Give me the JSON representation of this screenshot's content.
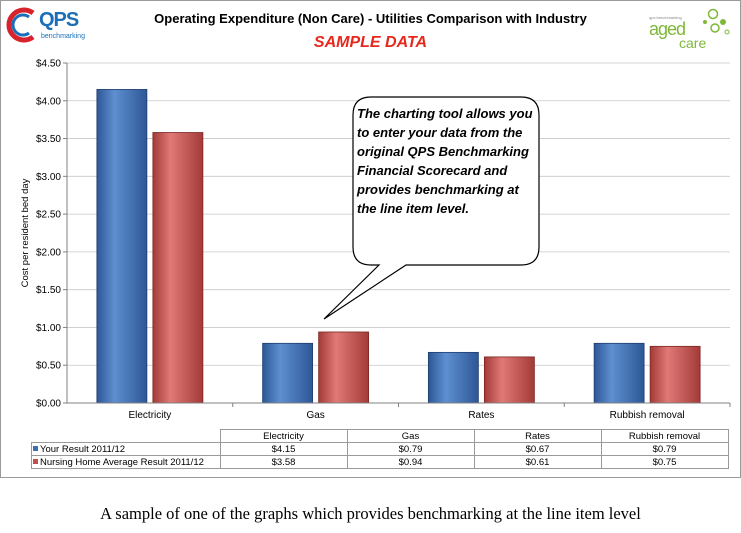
{
  "brand": {
    "left_logo_text": "QPS",
    "left_logo_tagline": "benchmarking",
    "right_logo_small": "qps benchmarking",
    "right_logo_word1": "aged",
    "right_logo_word2": "care"
  },
  "callout": {
    "text": "The charting tool allows you to enter your data from the original QPS Benchmarking Financial Scorecard and provides benchmarking at the line item level."
  },
  "caption": "A sample of one of the graphs which provides benchmarking at the line item level",
  "colors": {
    "series1": "#3e6fb3",
    "series2": "#c0504d",
    "title_accent": "#e8271c"
  },
  "chart_data": {
    "type": "bar",
    "title": "Operating Expenditure (Non Care) - Utilities Comparison with Industry",
    "subtitle": "SAMPLE DATA",
    "ylabel": "Cost per resident bed day",
    "xlabel": "",
    "categories": [
      "Electricity",
      "Gas",
      "Rates",
      "Rubbish removal"
    ],
    "series": [
      {
        "name": "Your Result 2011/12",
        "values": [
          4.15,
          0.79,
          0.67,
          0.79
        ],
        "labels": [
          "$4.15",
          "$0.79",
          "$0.67",
          "$0.79"
        ]
      },
      {
        "name": "Nursing Home Average Result 2011/12",
        "values": [
          3.58,
          0.94,
          0.61,
          0.75
        ],
        "labels": [
          "$3.58",
          "$0.94",
          "$0.61",
          "$0.75"
        ]
      }
    ],
    "ylim": [
      0,
      4.5
    ],
    "yticks": [
      0,
      0.5,
      1,
      1.5,
      2,
      2.5,
      3,
      3.5,
      4,
      4.5
    ],
    "ytick_labels": [
      "$0.00",
      "$0.50",
      "$1.00",
      "$1.50",
      "$2.00",
      "$2.50",
      "$3.00",
      "$3.50",
      "$4.00",
      "$4.50"
    ],
    "grid": true,
    "legend": "data-table"
  }
}
